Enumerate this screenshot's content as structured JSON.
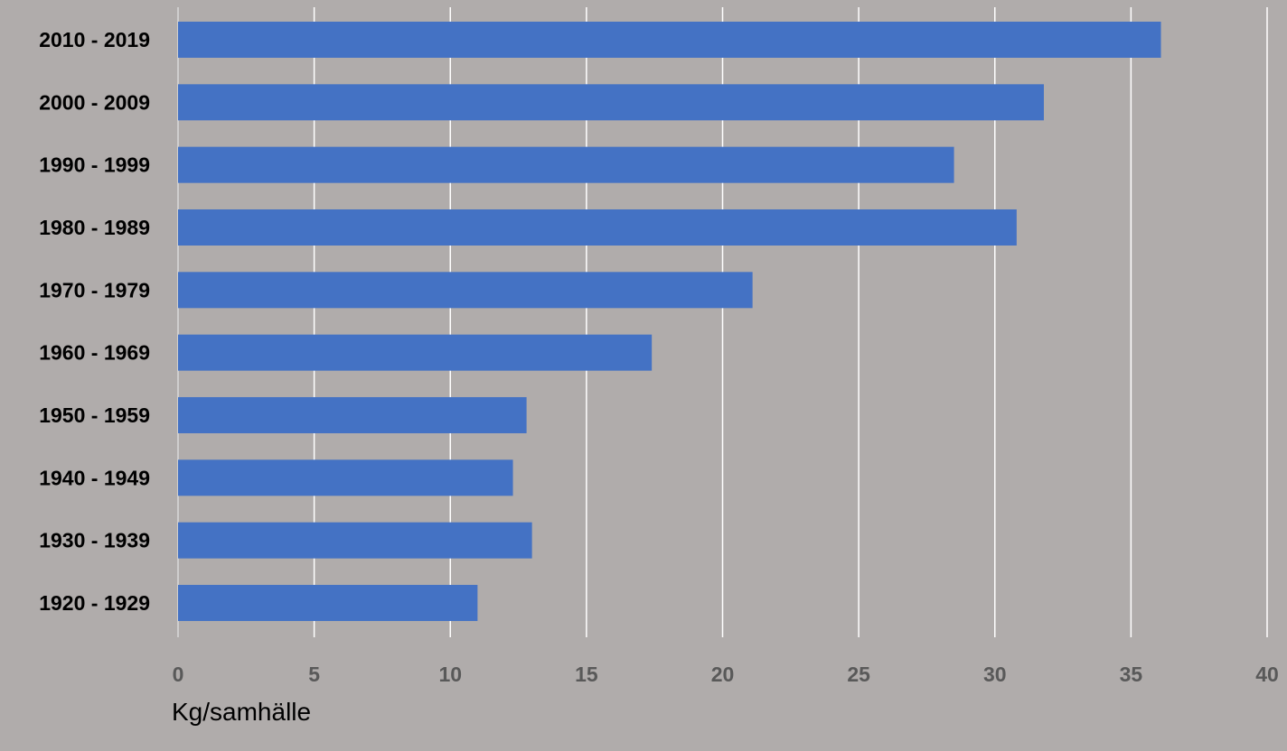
{
  "chart_data": {
    "type": "bar",
    "orientation": "horizontal",
    "categories": [
      "2010 - 2019",
      "2000 - 2009",
      "1990 - 1999",
      "1980 - 1989",
      "1970 - 1979",
      "1960 - 1969",
      "1950 - 1959",
      "1940 - 1949",
      "1930 - 1939",
      "1920 - 1929"
    ],
    "values": [
      36.1,
      31.8,
      28.5,
      30.8,
      21.1,
      17.4,
      12.8,
      12.3,
      13.0,
      11.0
    ],
    "xlabel": "Kg/samhälle",
    "ylabel": "",
    "xlim": [
      0,
      40
    ],
    "xticks": [
      0,
      5,
      10,
      15,
      20,
      25,
      30,
      35,
      40
    ],
    "grid": "vertical",
    "bar_color": "#4472c4",
    "grid_color": "#ffffff",
    "background_color": "#b0acab"
  }
}
